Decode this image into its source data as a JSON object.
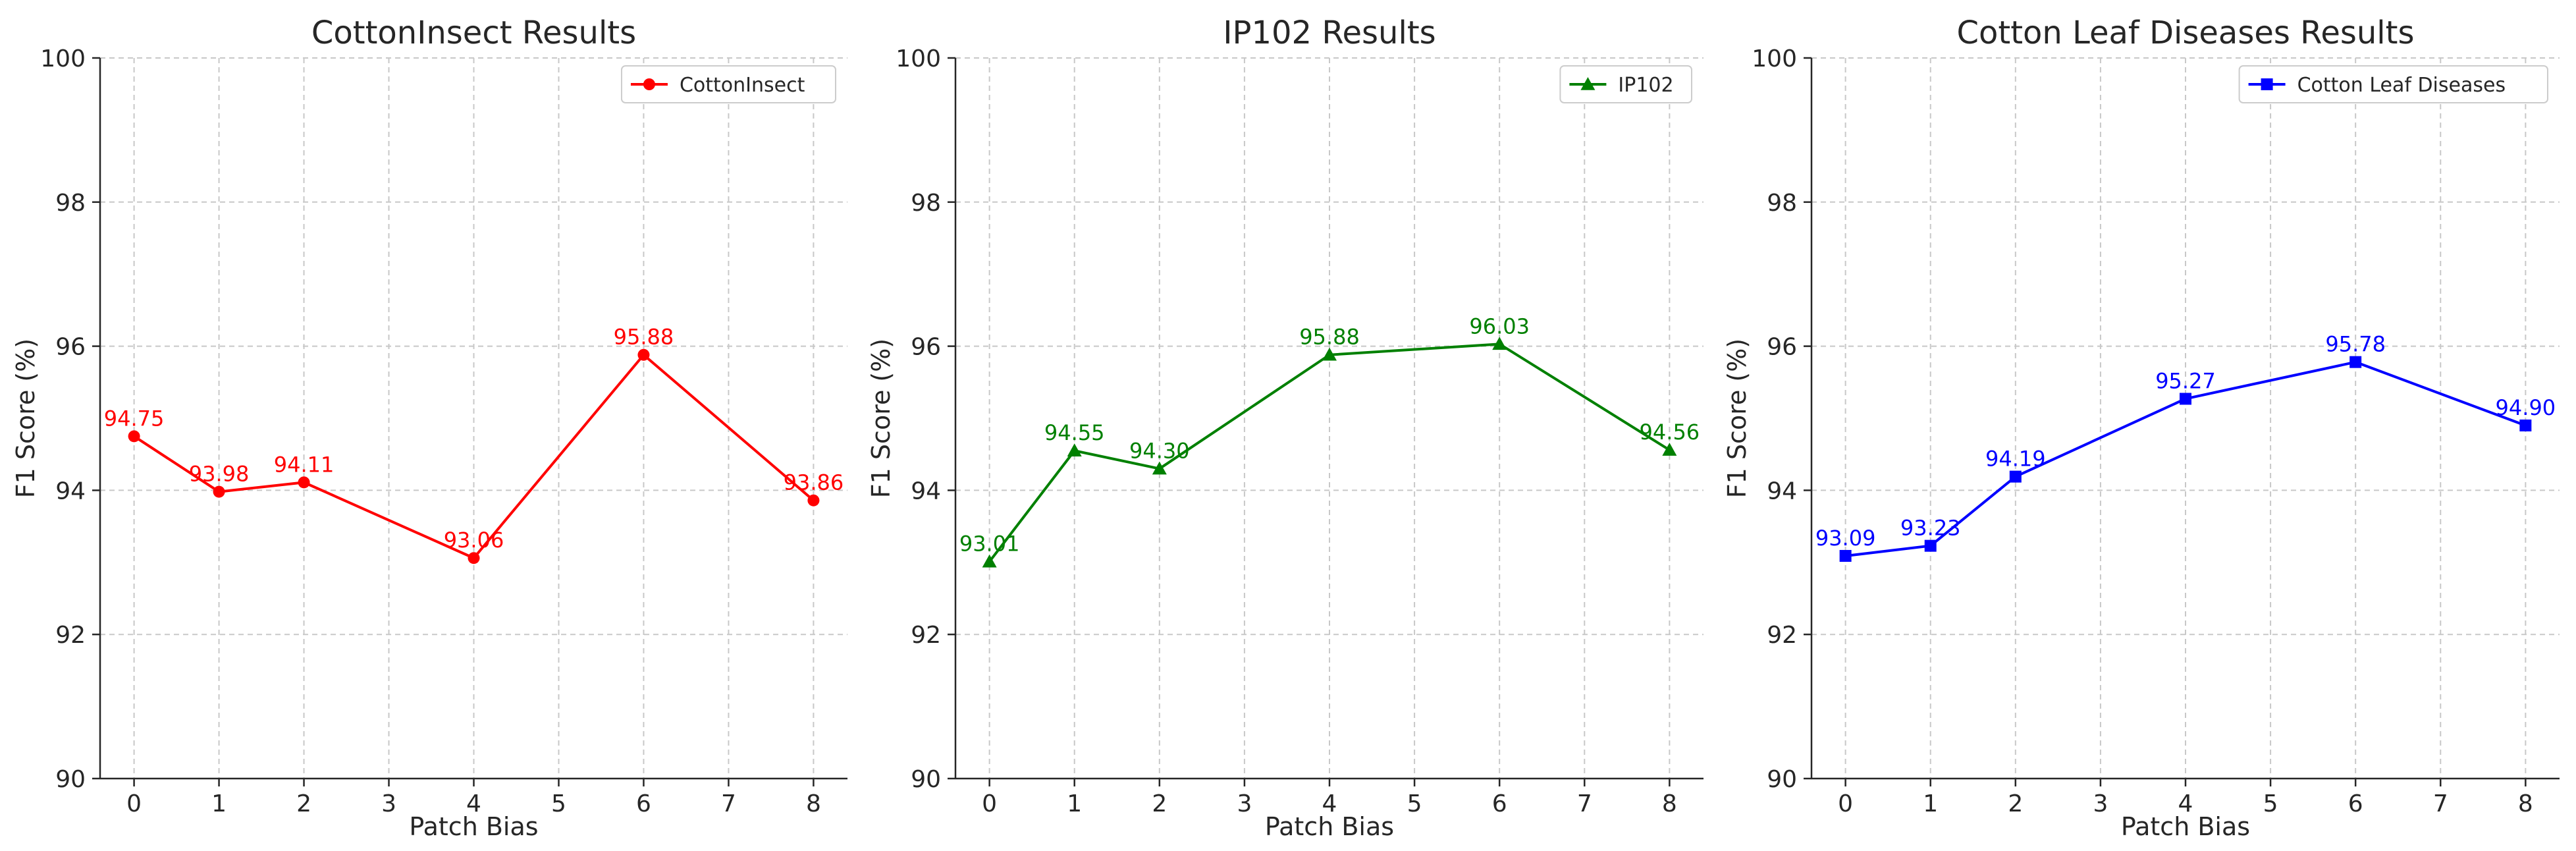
{
  "chart_data": [
    {
      "type": "line",
      "title": "CottonInsect Results",
      "xlabel": "Patch Bias",
      "ylabel": "F1 Score (%)",
      "xlim": [
        -0.4,
        8.4
      ],
      "ylim": [
        90,
        100
      ],
      "xticks": [
        "0",
        "1",
        "2",
        "3",
        "4",
        "5",
        "6",
        "7",
        "8"
      ],
      "yticks": [
        "90",
        "92",
        "94",
        "96",
        "98",
        "100"
      ],
      "grid": true,
      "legend_position": "top-right",
      "series": [
        {
          "name": "CottonInsect",
          "color": "#ff0000",
          "marker": "circle",
          "x": [
            0,
            1,
            2,
            4,
            6,
            8
          ],
          "values": [
            94.75,
            93.98,
            94.11,
            93.06,
            95.88,
            93.86
          ],
          "labels": [
            "94.75",
            "93.98",
            "94.11",
            "93.06",
            "95.88",
            "93.86"
          ]
        }
      ]
    },
    {
      "type": "line",
      "title": "IP102 Results",
      "xlabel": "Patch Bias",
      "ylabel": "F1 Score (%)",
      "xlim": [
        -0.4,
        8.4
      ],
      "ylim": [
        90,
        100
      ],
      "xticks": [
        "0",
        "1",
        "2",
        "3",
        "4",
        "5",
        "6",
        "7",
        "8"
      ],
      "yticks": [
        "90",
        "92",
        "94",
        "96",
        "98",
        "100"
      ],
      "grid": true,
      "legend_position": "top-right",
      "series": [
        {
          "name": "IP102",
          "color": "#008000",
          "marker": "triangle",
          "x": [
            0,
            1,
            2,
            4,
            6,
            8
          ],
          "values": [
            93.01,
            94.55,
            94.3,
            95.88,
            96.03,
            94.56
          ],
          "labels": [
            "93.01",
            "94.55",
            "94.30",
            "95.88",
            "96.03",
            "94.56"
          ]
        }
      ]
    },
    {
      "type": "line",
      "title": "Cotton Leaf Diseases Results",
      "xlabel": "Patch Bias",
      "ylabel": "F1 Score (%)",
      "xlim": [
        -0.4,
        8.4
      ],
      "ylim": [
        90,
        100
      ],
      "xticks": [
        "0",
        "1",
        "2",
        "3",
        "4",
        "5",
        "6",
        "7",
        "8"
      ],
      "yticks": [
        "90",
        "92",
        "94",
        "96",
        "98",
        "100"
      ],
      "grid": true,
      "legend_position": "top-right",
      "series": [
        {
          "name": "Cotton Leaf Diseases",
          "color": "#0000ff",
          "marker": "square",
          "x": [
            0,
            1,
            2,
            4,
            6,
            8
          ],
          "values": [
            93.09,
            93.23,
            94.19,
            95.27,
            95.78,
            94.9
          ],
          "labels": [
            "93.09",
            "93.23",
            "94.19",
            "95.27",
            "95.78",
            "94.90"
          ]
        }
      ]
    }
  ]
}
